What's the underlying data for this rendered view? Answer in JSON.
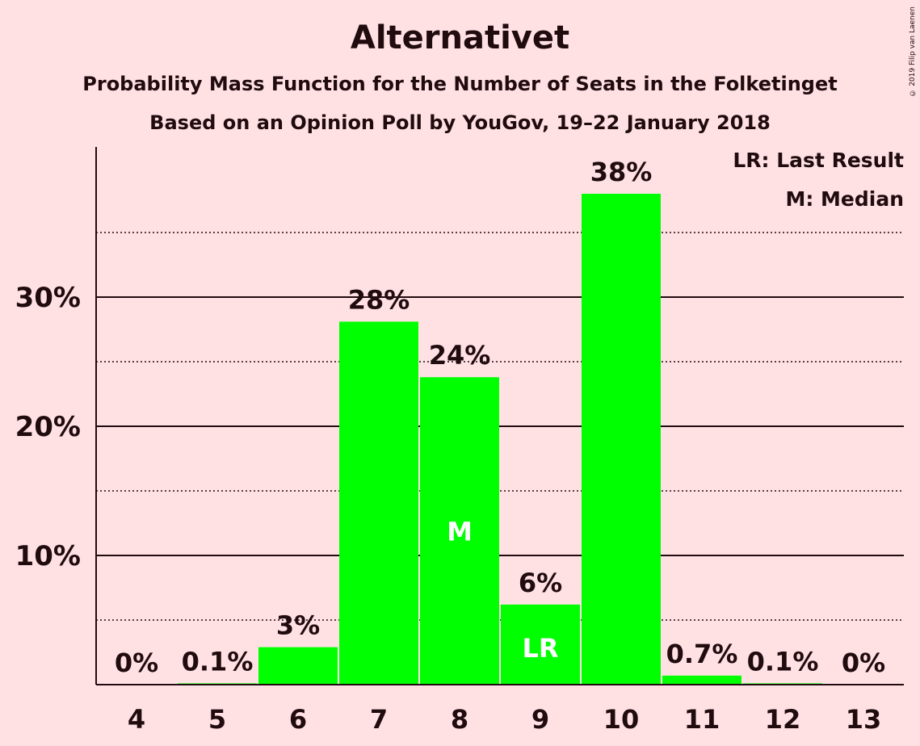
{
  "title": "Alternativet",
  "subtitle1": "Probability Mass Function for the Number of Seats in the Folketinget",
  "subtitle2": "Based on an Opinion Poll by YouGov, 19–22 January 2018",
  "copyright": "© 2019 Filip van Laenen",
  "legend": {
    "last_result": "LR: Last Result",
    "median": "M: Median"
  },
  "colors": {
    "background": "#ffe1e4",
    "bar": "#00ff00",
    "text": "#200b0f"
  },
  "chart_data": {
    "type": "bar",
    "title": "Alternativet",
    "xlabel": "",
    "ylabel": "",
    "categories": [
      "4",
      "5",
      "6",
      "7",
      "8",
      "9",
      "10",
      "11",
      "12",
      "13"
    ],
    "values": [
      0,
      0.1,
      2.9,
      28.1,
      23.8,
      6.2,
      38.0,
      0.7,
      0.1,
      0
    ],
    "data_labels": [
      "0%",
      "0.1%",
      "3%",
      "28%",
      "24%",
      "6%",
      "38%",
      "0.7%",
      "0.1%",
      "0%"
    ],
    "bar_markers": {
      "8": "M",
      "9": "LR"
    },
    "ylim": [
      0,
      41.5
    ],
    "y_ticks": [
      10,
      20,
      30
    ],
    "y_tick_labels": [
      "10%",
      "20%",
      "30%"
    ],
    "minor_gridlines": [
      5,
      15,
      25,
      35
    ],
    "grid": true,
    "legend_position": "top-right"
  }
}
